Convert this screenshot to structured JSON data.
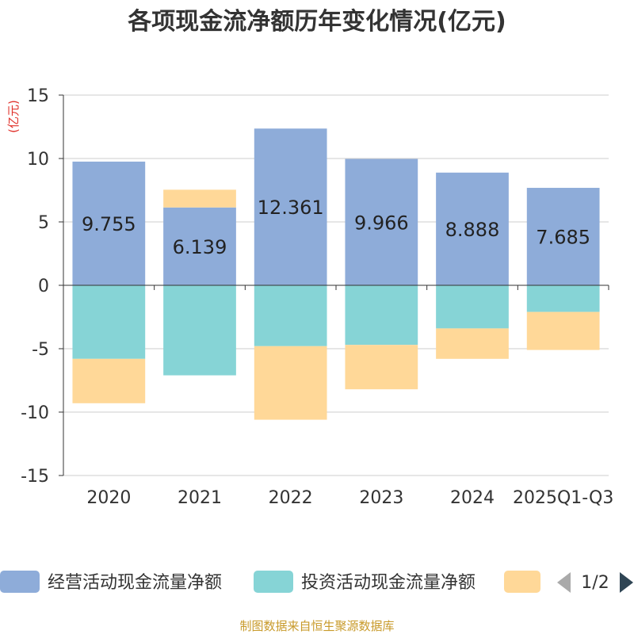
{
  "chart_data": {
    "type": "bar",
    "stacked": true,
    "title": "各项现金流净额历年变化情况(亿元)",
    "ylabel": "(亿元)",
    "xlabel": "",
    "ylim": [
      -15,
      15
    ],
    "yticks": [
      15,
      10,
      5,
      0,
      -5,
      -10,
      -15
    ],
    "categories": [
      "2020",
      "2021",
      "2022",
      "2023",
      "2024",
      "2025Q1-Q3"
    ],
    "series": [
      {
        "name": "经营活动现金流量净额",
        "color": "#8eacd9",
        "values": [
          9.755,
          6.139,
          12.361,
          9.966,
          8.888,
          7.685
        ]
      },
      {
        "name": "投资活动现金流量净额",
        "color": "#86d4d6",
        "values": [
          -5.8,
          -7.1,
          -4.8,
          -4.7,
          -3.4,
          -2.1
        ]
      },
      {
        "name": "",
        "color": "#ffd898",
        "values": [
          -3.5,
          1.4,
          -5.8,
          -3.5,
          -2.4,
          -3.0
        ]
      }
    ],
    "data_labels": [
      "9.755",
      "6.139",
      "12.361",
      "9.966",
      "8.888",
      "7.685"
    ],
    "legend": {
      "items": [
        "经营活动现金流量净额",
        "投资活动现金流量净额",
        ""
      ],
      "page": "1/2",
      "placement": "bottom"
    },
    "source": "制图数据来自恒生聚源数据库"
  }
}
